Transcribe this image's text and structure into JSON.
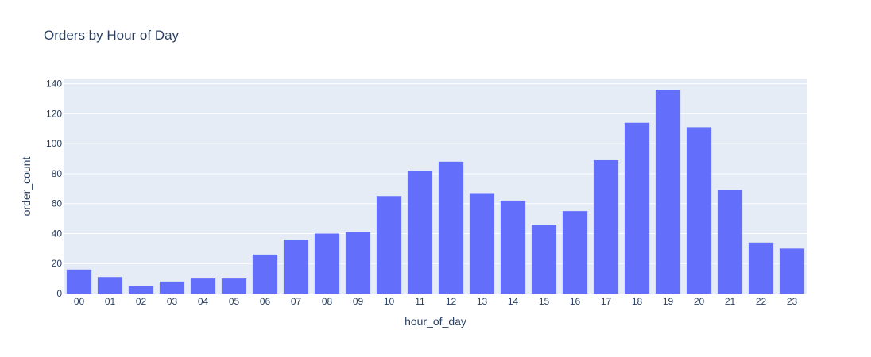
{
  "chart_data": {
    "type": "bar",
    "title": "Orders by Hour of Day",
    "xlabel": "hour_of_day",
    "ylabel": "order_count",
    "categories": [
      "00",
      "01",
      "02",
      "03",
      "04",
      "05",
      "06",
      "07",
      "08",
      "09",
      "10",
      "11",
      "12",
      "13",
      "14",
      "15",
      "16",
      "17",
      "18",
      "19",
      "20",
      "21",
      "22",
      "23"
    ],
    "values": [
      16,
      11,
      5,
      8,
      10,
      10,
      26,
      36,
      40,
      41,
      65,
      82,
      88,
      67,
      62,
      46,
      55,
      89,
      114,
      136,
      111,
      69,
      34,
      30
    ],
    "ylim": [
      0,
      143
    ],
    "yticks": [
      0,
      20,
      40,
      60,
      80,
      100,
      120,
      140
    ],
    "grid": true,
    "colors": {
      "bar": "#636efa",
      "plot_bg": "#e5ecf6",
      "grid": "#ffffff",
      "text": "#2a3f5f"
    }
  }
}
